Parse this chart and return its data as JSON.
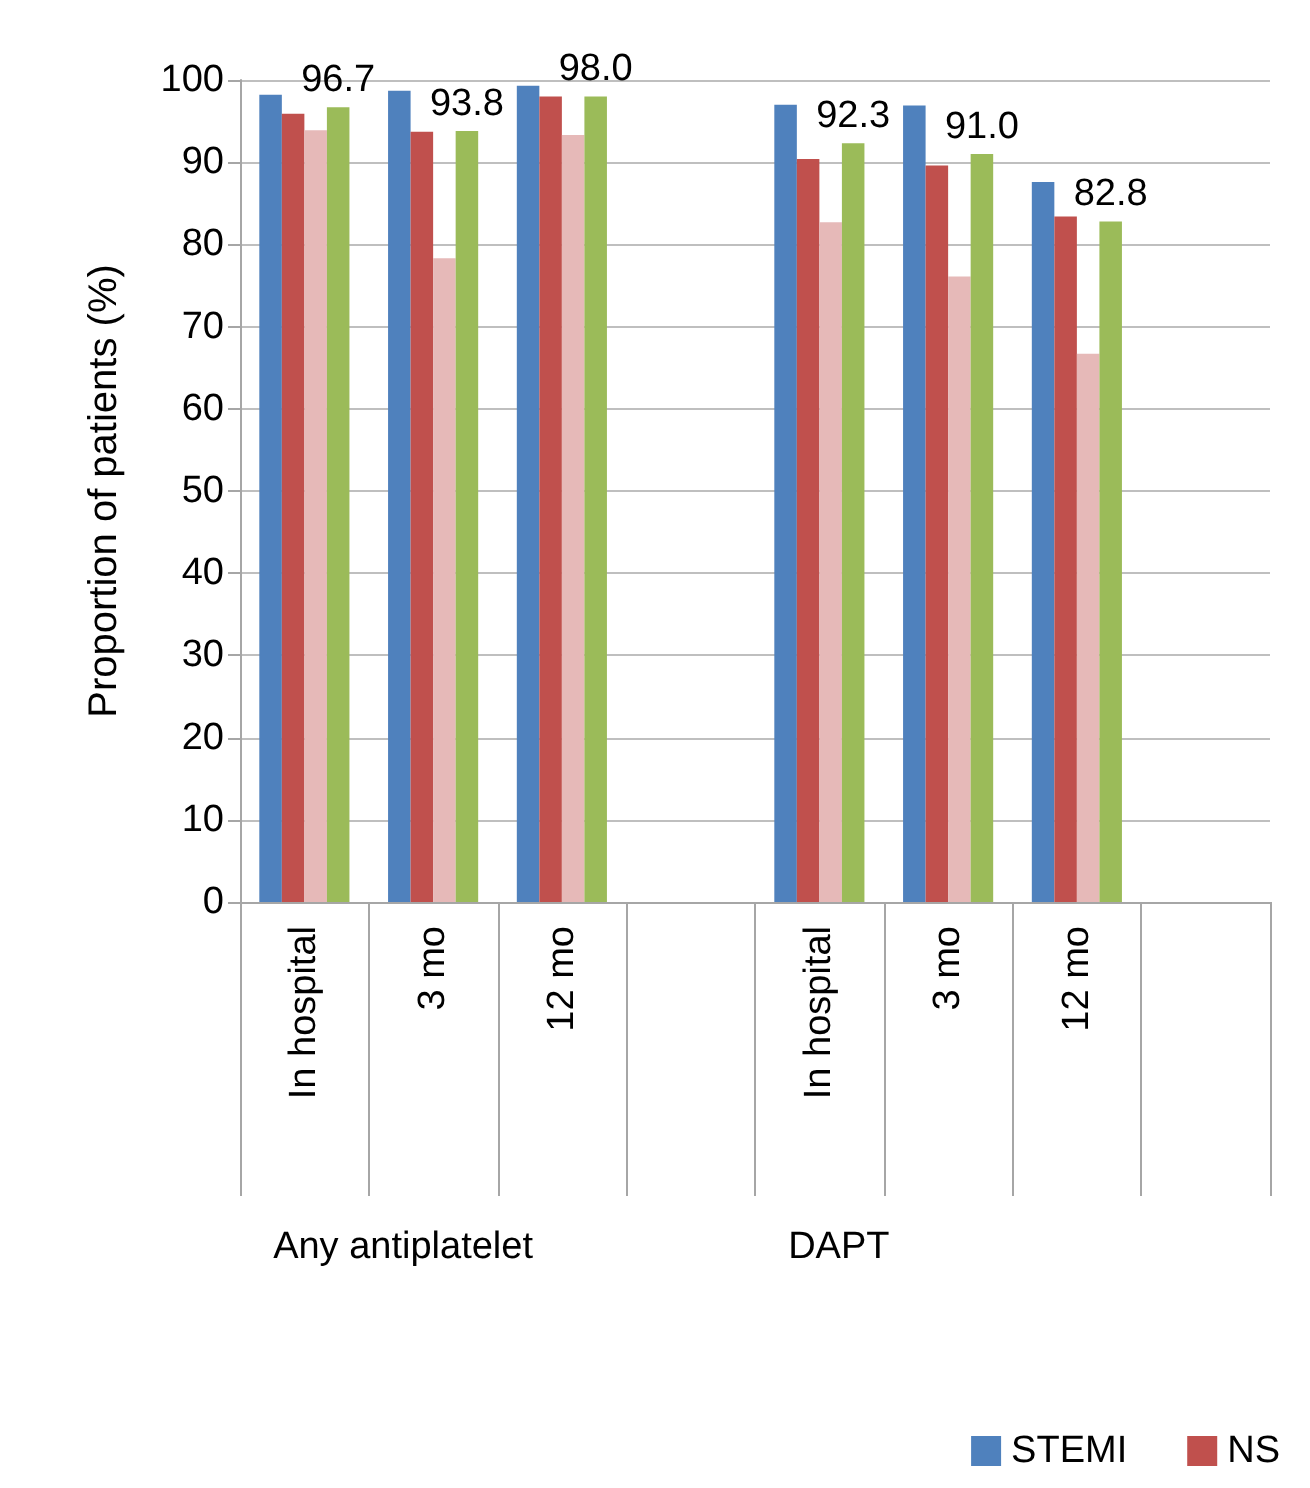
{
  "chart_data": {
    "type": "bar",
    "ylabel": "Proportion of patients (%)",
    "categories": [
      "In hospital",
      "3 mo",
      "12 mo",
      null,
      "In hospital",
      "3 mo",
      "12 mo",
      null
    ],
    "series": [
      {
        "name": "STEMI",
        "color": "#4f81bd",
        "values": [
          98.2,
          98.7,
          99.3,
          null,
          97.0,
          96.9,
          87.6,
          null
        ]
      },
      {
        "name": "NS",
        "color": "#c0504d",
        "values": [
          95.9,
          93.7,
          98.0,
          null,
          90.4,
          89.6,
          83.4,
          null
        ]
      },
      {
        "color": "#e6b9b8",
        "values": [
          93.9,
          78.3,
          93.3,
          null,
          82.7,
          76.1,
          66.7,
          null
        ]
      },
      {
        "color": "#9bbb59",
        "values": [
          96.7,
          93.8,
          98.0,
          null,
          92.3,
          91.0,
          82.8,
          null
        ],
        "value_labels": [
          "96.7",
          "93.8",
          "98.0",
          null,
          "92.3",
          "91.0",
          "82.8",
          null
        ]
      }
    ],
    "annotations": [
      "Any antiplatelet",
      "DAPT"
    ],
    "ylim": [
      0,
      100
    ],
    "yticks": [
      0,
      10,
      20,
      30,
      40,
      50,
      60,
      70,
      80,
      90,
      100
    ],
    "grid": "y",
    "legend": "bottom right"
  }
}
